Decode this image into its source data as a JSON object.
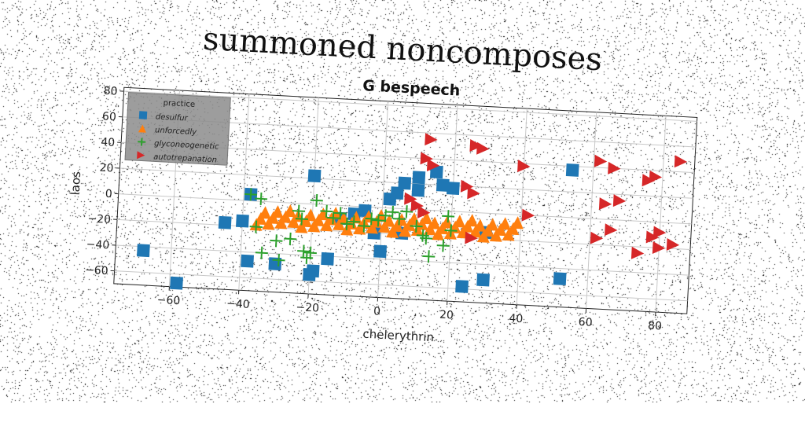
{
  "suptitle": "summoned noncomposes",
  "chart_data": {
    "type": "scatter",
    "title": "G bespeech",
    "xlabel": "chelerythrin",
    "ylabel": "laos",
    "xlim": [
      -76,
      89
    ],
    "ylim": [
      -70,
      83
    ],
    "xticks": [
      -60,
      -40,
      -20,
      0,
      20,
      40,
      60,
      80
    ],
    "yticks": [
      -60,
      -40,
      -20,
      0,
      20,
      40,
      60,
      80
    ],
    "grid": true,
    "legend": {
      "title": "practice",
      "placement": "top-left"
    },
    "series": [
      {
        "name": "desulfur",
        "marker": "square",
        "color": "#1f77b4",
        "points": [
          [
            -68,
            -43
          ],
          [
            -58,
            -67
          ],
          [
            -45,
            -18
          ],
          [
            -38,
            5
          ],
          [
            -38,
            -47
          ],
          [
            -20,
            22
          ],
          [
            -40,
            -16
          ],
          [
            -30,
            -48
          ],
          [
            -20,
            -55
          ],
          [
            -19,
            -52
          ],
          [
            -15,
            -42
          ],
          [
            -12,
            -10
          ],
          [
            -8,
            -6
          ],
          [
            -5,
            -3
          ],
          [
            -2,
            -20
          ],
          [
            0,
            -34
          ],
          [
            2,
            7
          ],
          [
            4,
            12
          ],
          [
            6,
            -19
          ],
          [
            6,
            20
          ],
          [
            10,
            15
          ],
          [
            10,
            25
          ],
          [
            15,
            30
          ],
          [
            17,
            20
          ],
          [
            20,
            18
          ],
          [
            24,
            -58
          ],
          [
            30,
            -52
          ],
          [
            52,
            -48
          ],
          [
            54,
            37
          ],
          [
            30,
            -15
          ]
        ]
      },
      {
        "name": "unforcedly",
        "marker": "triangle-up",
        "color": "#ff7f0e",
        "band": {
          "x": [
            -36,
            39
          ],
          "y": [
            -18,
            -6
          ],
          "count": 64
        }
      },
      {
        "name": "glyconeogenetic",
        "marker": "plus",
        "color": "#2ca02c",
        "points": [
          [
            -38,
            5
          ],
          [
            -35,
            2
          ],
          [
            -36,
            -20
          ],
          [
            -34,
            -40
          ],
          [
            -30,
            -30
          ],
          [
            -29,
            -45
          ],
          [
            -26,
            -28
          ],
          [
            -24,
            -6
          ],
          [
            -23,
            -12
          ],
          [
            -22,
            -37
          ],
          [
            -21,
            -42
          ],
          [
            -20,
            -38
          ],
          [
            -19,
            3
          ],
          [
            -16,
            -5
          ],
          [
            -14,
            -10
          ],
          [
            -12,
            -6
          ],
          [
            -10,
            -14
          ],
          [
            -8,
            -12
          ],
          [
            -5,
            -15
          ],
          [
            -3,
            -9
          ],
          [
            -1,
            -10
          ],
          [
            1,
            -6
          ],
          [
            3,
            -3
          ],
          [
            5,
            -8
          ],
          [
            7,
            -2
          ],
          [
            10,
            -13
          ],
          [
            12,
            -20
          ],
          [
            13,
            -22
          ],
          [
            14,
            -36
          ],
          [
            18,
            -27
          ],
          [
            19,
            -4
          ],
          [
            20,
            -15
          ]
        ]
      },
      {
        "name": "autotrepanation",
        "marker": "triangle-right",
        "color": "#d62728",
        "points": [
          [
            13,
            55
          ],
          [
            12,
            40
          ],
          [
            14,
            35
          ],
          [
            8,
            8
          ],
          [
            10,
            3
          ],
          [
            12,
            -2
          ],
          [
            26,
            52
          ],
          [
            28,
            50
          ],
          [
            24,
            20
          ],
          [
            26,
            15
          ],
          [
            40,
            38
          ],
          [
            42,
            0
          ],
          [
            62,
            45
          ],
          [
            64,
            12
          ],
          [
            66,
            -8
          ],
          [
            62,
            -15
          ],
          [
            66,
            40
          ],
          [
            68,
            15
          ],
          [
            76,
            32
          ],
          [
            78,
            35
          ],
          [
            78,
            -12
          ],
          [
            80,
            -8
          ],
          [
            74,
            -25
          ],
          [
            80,
            -20
          ],
          [
            84,
            -17
          ],
          [
            85,
            48
          ],
          [
            26,
            -20
          ]
        ]
      }
    ]
  }
}
